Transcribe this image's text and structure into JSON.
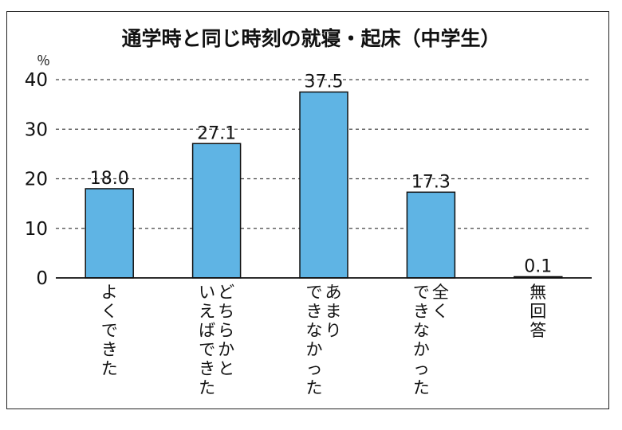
{
  "chart_data": {
    "type": "bar",
    "title": "通学時と同じ時刻の就寝・起床（中学生）",
    "ylabel": "％",
    "ylim": [
      0,
      40
    ],
    "yticks": [
      "0",
      "10",
      "20",
      "30",
      "40"
    ],
    "grid": true,
    "bar_color": "#5fb4e4",
    "categories": [
      [
        "よくできた"
      ],
      [
        "どちらかと",
        "いえばできた"
      ],
      [
        "あまり",
        "できなかった"
      ],
      [
        "全く",
        "できなかった"
      ],
      [
        "無回答"
      ]
    ],
    "values": [
      18.0,
      27.1,
      37.5,
      17.3,
      0.1
    ],
    "value_labels": [
      "18.0",
      "27.1",
      "37.5",
      "17.3",
      "0.1"
    ]
  }
}
